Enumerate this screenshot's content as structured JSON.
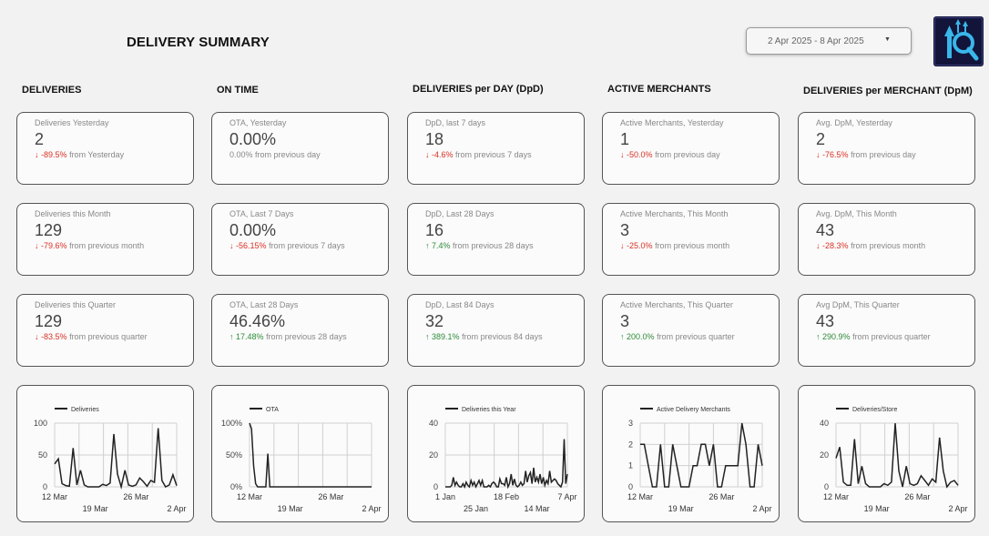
{
  "title": "DELIVERY SUMMARY",
  "date_range": "2 Apr 2025 - 8 Apr 2025",
  "columns": [
    {
      "heading": "DELIVERIES",
      "cards": [
        {
          "label": "Deliveries Yesterday",
          "value": "2",
          "change": "-89.5%",
          "change_suffix": "from Yesterday",
          "direction": "down"
        },
        {
          "label": "Deliveries this Month",
          "value": "129",
          "change": "-79.6%",
          "change_suffix": "from previous month",
          "direction": "down"
        },
        {
          "label": "Deliveries this Quarter",
          "value": "129",
          "change": "-83.5%",
          "change_suffix": "from previous quarter",
          "direction": "down"
        }
      ]
    },
    {
      "heading": "ON TIME",
      "cards": [
        {
          "label": "OTA, Yesterday",
          "value": "0.00%",
          "change": "0.00%",
          "change_suffix": "from previous day",
          "direction": "none"
        },
        {
          "label": "OTA, Last 7 Days",
          "value": "0.00%",
          "change": "-56.15%",
          "change_suffix": "from previous 7 days",
          "direction": "down"
        },
        {
          "label": "OTA, Last 28 Days",
          "value": "46.46%",
          "change": "17.48%",
          "change_suffix": "from previous 28 days",
          "direction": "up"
        }
      ]
    },
    {
      "heading": "DELIVERIES per DAY (DpD)",
      "cards": [
        {
          "label": "DpD, last 7 days",
          "value": "18",
          "change": "-4.6%",
          "change_suffix": "from previous 7 days",
          "direction": "down"
        },
        {
          "label": "DpD, Last 28 Days",
          "value": "16",
          "change": "7.4%",
          "change_suffix": "from previous 28 days",
          "direction": "up"
        },
        {
          "label": "DpD, Last 84 Days",
          "value": "32",
          "change": "389.1%",
          "change_suffix": "from previous 84 days",
          "direction": "up"
        }
      ]
    },
    {
      "heading": "ACTIVE MERCHANTS",
      "cards": [
        {
          "label": "Active Merchants, Yesterday",
          "value": "1",
          "change": "-50.0%",
          "change_suffix": "from previous day",
          "direction": "down"
        },
        {
          "label": "Active Merchants, This Month",
          "value": "3",
          "change": "-25.0%",
          "change_suffix": "from previous month",
          "direction": "down"
        },
        {
          "label": "Active Merchants, This Quarter",
          "value": "3",
          "change": "200.0%",
          "change_suffix": "from previous quarter",
          "direction": "up"
        }
      ]
    },
    {
      "heading": "DELIVERIES per MERCHANT (DpM)",
      "cards": [
        {
          "label": "Avg. DpM, Yesterday",
          "value": "2",
          "change": "-76.5%",
          "change_suffix": "from previous day",
          "direction": "down"
        },
        {
          "label": "Avg. DpM, This Month",
          "value": "43",
          "change": "-28.3%",
          "change_suffix": "from previous month",
          "direction": "down"
        },
        {
          "label": "Avg DpM, This Quarter",
          "value": "43",
          "change": "290.9%",
          "change_suffix": "from previous quarter",
          "direction": "up"
        }
      ]
    }
  ],
  "colors": {
    "down": "#d93025",
    "up": "#2e8b3a",
    "line": "#222222",
    "grid": "#d0d0d0"
  },
  "chart_data": [
    {
      "type": "line",
      "series": [
        {
          "name": "Deliveries",
          "values": [
            36,
            44,
            5,
            2,
            1,
            61,
            3,
            26,
            3,
            0,
            0,
            0,
            0,
            4,
            2,
            6,
            83,
            20,
            0,
            26,
            3,
            1,
            3,
            14,
            8,
            1,
            10,
            7,
            92,
            10,
            0,
            3,
            19,
            2
          ]
        }
      ],
      "ylim": [
        0,
        100
      ],
      "yticks": [
        "0",
        "50",
        "100"
      ],
      "xticks_top": [
        "12 Mar",
        "26 Mar"
      ],
      "xticks_bottom": [
        "19 Mar",
        "2 Apr"
      ]
    },
    {
      "type": "line",
      "series": [
        {
          "name": "OTA",
          "values": [
            100,
            91,
            33,
            5,
            0,
            0,
            0,
            0,
            0,
            52,
            0,
            0,
            0,
            0,
            0,
            0,
            0,
            0,
            0,
            0,
            0,
            0,
            0,
            0,
            0,
            0,
            0,
            0,
            0,
            0,
            0,
            0,
            0,
            0,
            0,
            0,
            0,
            0,
            0,
            0,
            0,
            0,
            0,
            0,
            0,
            0,
            0,
            0,
            0,
            0,
            0,
            0,
            0,
            0,
            0,
            0,
            0,
            0,
            0,
            0,
            0
          ]
        }
      ],
      "ylim": [
        0,
        100
      ],
      "yticks": [
        "0%",
        "50%",
        "100%"
      ],
      "xticks_top": [
        "12 Mar",
        "26 Mar"
      ],
      "xticks_bottom": [
        "19 Mar",
        "2 Apr"
      ]
    },
    {
      "type": "line",
      "series": [
        {
          "name": "Deliveries this Year",
          "values": [
            0,
            0,
            0,
            0,
            1,
            6,
            1,
            3,
            1,
            0,
            0,
            2,
            0,
            3,
            1,
            0,
            4,
            1,
            3,
            0,
            2,
            4,
            1,
            4,
            0,
            0,
            0,
            1,
            0,
            2,
            3,
            2,
            0,
            0,
            5,
            2,
            2,
            1,
            6,
            0,
            2,
            8,
            1,
            5,
            1,
            0,
            1,
            3,
            1,
            2,
            10,
            3,
            7,
            9,
            2,
            12,
            3,
            6,
            3,
            8,
            2,
            6,
            1,
            4,
            2,
            10,
            3,
            4,
            5,
            4,
            2,
            1,
            0,
            3,
            30,
            2,
            8
          ]
        }
      ],
      "ylim": [
        0,
        40
      ],
      "yticks": [
        "0",
        "20",
        "40"
      ],
      "xticks_top": [
        "1 Jan",
        "18 Feb",
        "7 Apr"
      ],
      "xticks_bottom": [
        "25 Jan",
        "14 Mar"
      ]
    },
    {
      "type": "line",
      "series": [
        {
          "name": "Active Delivery Merchants",
          "values": [
            2,
            2,
            1,
            0,
            0,
            2,
            0,
            0,
            2,
            1,
            0,
            0,
            0,
            1,
            1,
            2,
            2,
            1,
            2,
            0,
            0,
            1,
            1,
            1,
            1,
            3,
            2,
            0,
            0,
            2,
            1
          ]
        }
      ],
      "ylim": [
        0,
        3
      ],
      "yticks": [
        "0",
        "1",
        "2",
        "3"
      ],
      "xticks_top": [
        "12 Mar",
        "26 Mar"
      ],
      "xticks_bottom": [
        "19 Mar",
        "2 Apr"
      ]
    },
    {
      "type": "line",
      "series": [
        {
          "name": "Deliveries/Store",
          "values": [
            18,
            25,
            3,
            1,
            1,
            30,
            2,
            13,
            2,
            0,
            0,
            0,
            0,
            2,
            1,
            3,
            40,
            10,
            0,
            13,
            2,
            1,
            2,
            7,
            4,
            1,
            5,
            3,
            31,
            10,
            0,
            3,
            4,
            1
          ]
        }
      ],
      "ylim": [
        0,
        40
      ],
      "yticks": [
        "0",
        "20",
        "40"
      ],
      "xticks_top": [
        "12 Mar",
        "26 Mar"
      ],
      "xticks_bottom": [
        "19 Mar",
        "2 Apr"
      ]
    }
  ]
}
